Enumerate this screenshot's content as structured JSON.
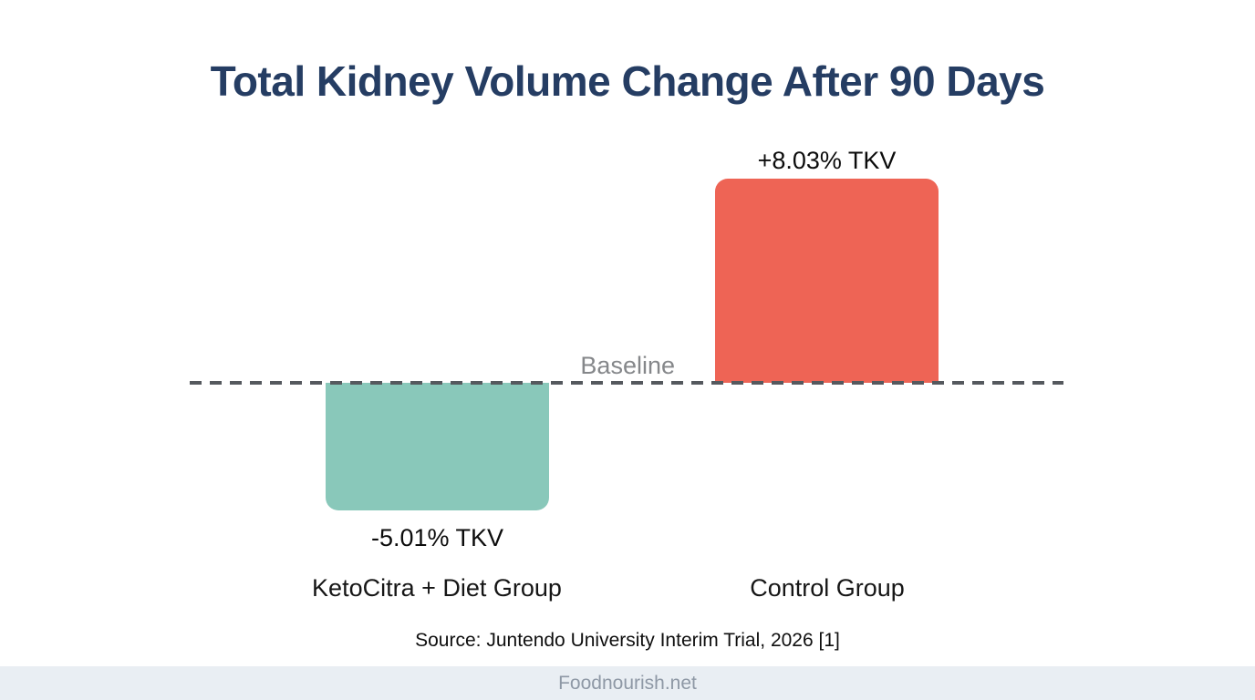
{
  "page": {
    "title": "Total Kidney Volume Change After 90 Days",
    "source": "Source: Juntendo University Interim Trial, 2026 [1]",
    "footer": "Foodnourish.net"
  },
  "chart_data": {
    "type": "bar",
    "title": "Total Kidney Volume Change After 90 Days",
    "categories": [
      "KetoCitra + Diet Group",
      "Control Group"
    ],
    "values": [
      -5.01,
      8.03
    ],
    "value_labels": [
      "-5.01% TKV",
      "+8.03% TKV"
    ],
    "unit": "% TKV",
    "colors": [
      "#89c8ba",
      "#ee6455"
    ],
    "baseline": {
      "value": 0,
      "label": "Baseline"
    },
    "legend": false,
    "grid": false,
    "source": "Source: Juntendo University Interim Trial, 2026 [1]"
  },
  "theme": {
    "title_color": "#253d63",
    "bar_negative_color": "#89c8ba",
    "bar_positive_color": "#ee6455",
    "baseline_dash_color": "#55595e",
    "baseline_label_color": "#85878a",
    "label_color": "#111111",
    "footer_background": "#e9eef3",
    "footer_text_color": "#8e98a5"
  }
}
